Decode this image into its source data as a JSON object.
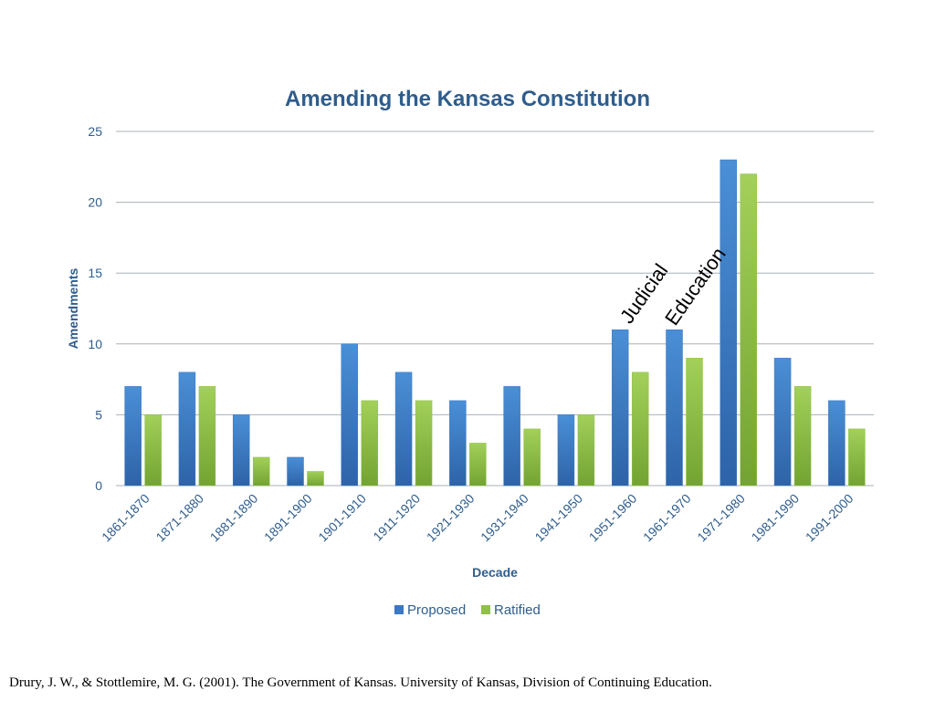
{
  "chart_data": {
    "type": "bar",
    "title": "Amending the Kansas Constitution",
    "xlabel": "Decade",
    "ylabel": "Amendments",
    "ylim": [
      0,
      25
    ],
    "yticks": [
      0,
      5,
      10,
      15,
      20,
      25
    ],
    "grid": true,
    "legend_position": "bottom",
    "categories": [
      "1861-1870",
      "1871-1880",
      "1881-1890",
      "1891-1900",
      "1901-1910",
      "1911-1920",
      "1921-1930",
      "1931-1940",
      "1941-1950",
      "1951-1960",
      "1961-1970",
      "1971-1980",
      "1981-1990",
      "1991-2000"
    ],
    "series": [
      {
        "name": "Proposed",
        "color": "#3a78c3",
        "values": [
          7,
          8,
          5,
          2,
          10,
          8,
          6,
          7,
          5,
          11,
          11,
          23,
          9,
          6
        ]
      },
      {
        "name": "Ratified",
        "color": "#8fc047",
        "values": [
          5,
          7,
          2,
          1,
          6,
          6,
          3,
          4,
          5,
          8,
          9,
          22,
          7,
          4
        ]
      }
    ],
    "annotations": [
      {
        "text": "Judicial",
        "category": "1951-1960"
      },
      {
        "text": "Education",
        "category": "1961-1970"
      }
    ]
  },
  "source_note": "Drury, J. W., & Stottlemire, M. G. (2001). The Government of Kansas. University of Kansas, Division of Continuing Education."
}
